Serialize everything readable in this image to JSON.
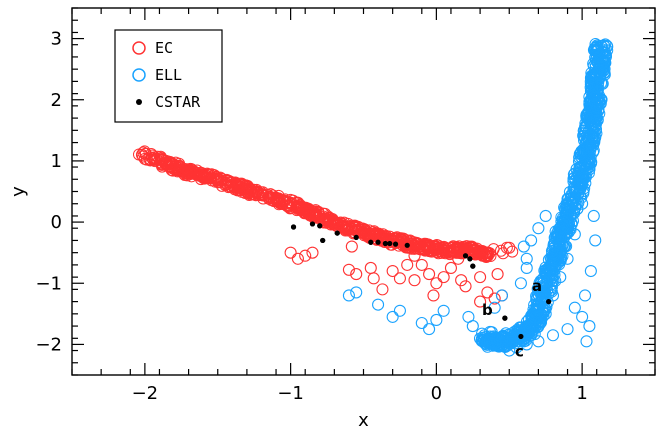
{
  "chart_data": {
    "type": "scatter",
    "xlabel": "x",
    "ylabel": "y",
    "xlim": [
      -2.5,
      1.5
    ],
    "ylim": [
      -2.5,
      3.5
    ],
    "xticks": [
      -2,
      -1,
      0,
      1
    ],
    "yticks": [
      -2,
      -1,
      0,
      1,
      2,
      3
    ],
    "legend_position": "top-left",
    "series": [
      {
        "name": "EC",
        "marker": "open-circle",
        "color": "#ff3333",
        "values": [
          [
            -2.02,
            1.1
          ],
          [
            -1.95,
            1.05
          ],
          [
            -1.9,
            1.02
          ],
          [
            -1.85,
            0.95
          ],
          [
            -1.8,
            0.9
          ],
          [
            -1.75,
            0.86
          ],
          [
            -1.7,
            0.82
          ],
          [
            -1.65,
            0.78
          ],
          [
            -1.6,
            0.75
          ],
          [
            -1.55,
            0.72
          ],
          [
            -1.5,
            0.68
          ],
          [
            -1.45,
            0.64
          ],
          [
            -1.4,
            0.6
          ],
          [
            -1.35,
            0.57
          ],
          [
            -1.3,
            0.53
          ],
          [
            -1.25,
            0.49
          ],
          [
            -1.2,
            0.46
          ],
          [
            -1.15,
            0.42
          ],
          [
            -1.1,
            0.38
          ],
          [
            -1.05,
            0.33
          ],
          [
            -1.0,
            0.3
          ],
          [
            -0.95,
            0.25
          ],
          [
            -0.9,
            0.2
          ],
          [
            -0.85,
            0.14
          ],
          [
            -0.8,
            0.1
          ],
          [
            -0.75,
            0.05
          ],
          [
            -0.7,
            0.0
          ],
          [
            -0.65,
            -0.05
          ],
          [
            -0.6,
            -0.1
          ],
          [
            -0.55,
            -0.13
          ],
          [
            -0.5,
            -0.17
          ],
          [
            -0.45,
            -0.2
          ],
          [
            -0.4,
            -0.23
          ],
          [
            -0.35,
            -0.27
          ],
          [
            -0.3,
            -0.3
          ],
          [
            -0.25,
            -0.33
          ],
          [
            -0.2,
            -0.36
          ],
          [
            -0.15,
            -0.38
          ],
          [
            -0.1,
            -0.4
          ],
          [
            -0.05,
            -0.42
          ],
          [
            0.0,
            -0.44
          ],
          [
            0.05,
            -0.46
          ],
          [
            0.1,
            -0.47
          ],
          [
            0.15,
            -0.45
          ],
          [
            0.2,
            -0.44
          ],
          [
            0.25,
            -0.46
          ],
          [
            0.3,
            -0.5
          ],
          [
            0.35,
            -0.55
          ],
          [
            0.5,
            -0.42
          ],
          [
            -0.58,
            -0.4
          ],
          [
            -0.6,
            -0.78
          ],
          [
            -0.55,
            -0.85
          ],
          [
            -0.45,
            -0.75
          ],
          [
            -0.43,
            -0.92
          ],
          [
            -0.37,
            -1.1
          ],
          [
            -0.3,
            -0.8
          ],
          [
            -0.25,
            -0.92
          ],
          [
            -0.2,
            -0.7
          ],
          [
            -0.15,
            -0.95
          ],
          [
            -0.1,
            -0.7
          ],
          [
            -0.05,
            -0.85
          ],
          [
            0.0,
            -1.0
          ],
          [
            -0.02,
            -1.2
          ],
          [
            0.05,
            -0.9
          ],
          [
            0.1,
            -0.75
          ],
          [
            0.15,
            -0.6
          ],
          [
            0.17,
            -0.95
          ],
          [
            0.2,
            -1.05
          ],
          [
            0.3,
            -0.9
          ],
          [
            0.35,
            -1.15
          ],
          [
            0.45,
            -1.2
          ],
          [
            0.4,
            -1.25
          ],
          [
            0.3,
            -1.3
          ],
          [
            -0.95,
            -0.6
          ],
          [
            -0.9,
            -0.55
          ],
          [
            -0.85,
            -0.5
          ],
          [
            -1.0,
            -0.5
          ],
          [
            -0.15,
            -0.55
          ],
          [
            0.42,
            -0.85
          ]
        ]
      },
      {
        "name": "ELL",
        "marker": "open-circle",
        "color": "#1aa3ff",
        "values": [
          [
            1.13,
            2.88
          ],
          [
            1.12,
            2.75
          ],
          [
            1.12,
            2.6
          ],
          [
            1.11,
            2.45
          ],
          [
            1.1,
            2.3
          ],
          [
            1.1,
            2.15
          ],
          [
            1.09,
            2.0
          ],
          [
            1.08,
            1.85
          ],
          [
            1.07,
            1.7
          ],
          [
            1.06,
            1.55
          ],
          [
            1.05,
            1.4
          ],
          [
            1.04,
            1.25
          ],
          [
            1.03,
            1.1
          ],
          [
            1.02,
            0.95
          ],
          [
            1.0,
            0.8
          ],
          [
            0.98,
            0.65
          ],
          [
            0.96,
            0.5
          ],
          [
            0.94,
            0.35
          ],
          [
            0.92,
            0.2
          ],
          [
            0.9,
            0.05
          ],
          [
            0.88,
            -0.1
          ],
          [
            0.86,
            -0.25
          ],
          [
            0.84,
            -0.4
          ],
          [
            0.82,
            -0.55
          ],
          [
            0.8,
            -0.7
          ],
          [
            0.78,
            -0.85
          ],
          [
            0.76,
            -1.0
          ],
          [
            0.74,
            -1.15
          ],
          [
            0.72,
            -1.3
          ],
          [
            0.7,
            -1.45
          ],
          [
            0.68,
            -1.55
          ],
          [
            0.66,
            -1.65
          ],
          [
            0.64,
            -1.75
          ],
          [
            0.6,
            -1.82
          ],
          [
            0.55,
            -1.88
          ],
          [
            0.5,
            -1.92
          ],
          [
            0.45,
            -1.95
          ],
          [
            0.4,
            -1.96
          ],
          [
            0.35,
            -1.95
          ],
          [
            0.33,
            -1.85
          ],
          [
            1.05,
            0.9
          ],
          [
            1.0,
            0.3
          ],
          [
            0.95,
            -0.2
          ],
          [
            0.9,
            -0.6
          ],
          [
            0.85,
            -0.9
          ],
          [
            0.8,
            -1.2
          ],
          [
            0.75,
            -1.5
          ],
          [
            0.7,
            -1.7
          ],
          [
            0.65,
            -1.85
          ],
          [
            0.6,
            -1.95
          ],
          [
            0.55,
            -2.05
          ],
          [
            0.5,
            -2.1
          ],
          [
            0.62,
            -2.0
          ],
          [
            0.7,
            -1.95
          ],
          [
            0.8,
            -1.85
          ],
          [
            0.9,
            -1.75
          ],
          [
            1.0,
            -1.55
          ],
          [
            1.05,
            -1.7
          ],
          [
            1.03,
            -1.95
          ],
          [
            1.08,
            0.1
          ],
          [
            1.09,
            -0.3
          ],
          [
            1.06,
            -0.8
          ],
          [
            1.02,
            -1.2
          ],
          [
            0.95,
            -1.4
          ],
          [
            0.58,
            -1.0
          ],
          [
            0.62,
            -0.6
          ],
          [
            0.65,
            -0.3
          ],
          [
            0.7,
            -0.1
          ],
          [
            0.75,
            0.1
          ],
          [
            0.45,
            -1.2
          ],
          [
            0.4,
            -1.4
          ],
          [
            -0.6,
            -1.2
          ],
          [
            -0.55,
            -1.15
          ],
          [
            -0.4,
            -1.35
          ],
          [
            -0.3,
            -1.55
          ],
          [
            -0.25,
            -1.45
          ],
          [
            -0.1,
            -1.65
          ],
          [
            -0.05,
            -1.75
          ],
          [
            0.0,
            -1.6
          ],
          [
            0.05,
            -1.45
          ],
          [
            0.22,
            -1.55
          ],
          [
            0.25,
            -1.7
          ],
          [
            0.38,
            -1.8
          ],
          [
            0.6,
            -0.4
          ],
          [
            0.62,
            -0.75
          ]
        ]
      },
      {
        "name": "CSTAR",
        "marker": "filled-dot",
        "color": "#000000",
        "values": [
          [
            -0.98,
            -0.08
          ],
          [
            -0.85,
            -0.03
          ],
          [
            -0.8,
            -0.06
          ],
          [
            -0.78,
            -0.3
          ],
          [
            -0.68,
            -0.18
          ],
          [
            -0.55,
            -0.25
          ],
          [
            -0.45,
            -0.33
          ],
          [
            -0.4,
            -0.33
          ],
          [
            -0.35,
            -0.35
          ],
          [
            -0.32,
            -0.35
          ],
          [
            -0.28,
            -0.36
          ],
          [
            -0.2,
            -0.38
          ],
          [
            0.2,
            -0.55
          ],
          [
            0.23,
            -0.6
          ],
          [
            0.25,
            -0.72
          ],
          [
            0.47,
            -1.57
          ],
          [
            0.58,
            -1.87
          ],
          [
            0.77,
            -1.3
          ]
        ]
      }
    ],
    "annotations": [
      {
        "text": "a",
        "x": 0.69,
        "y": -1.13
      },
      {
        "text": "b",
        "x": 0.35,
        "y": -1.52
      },
      {
        "text": "c",
        "x": 0.57,
        "y": -2.2
      }
    ]
  }
}
